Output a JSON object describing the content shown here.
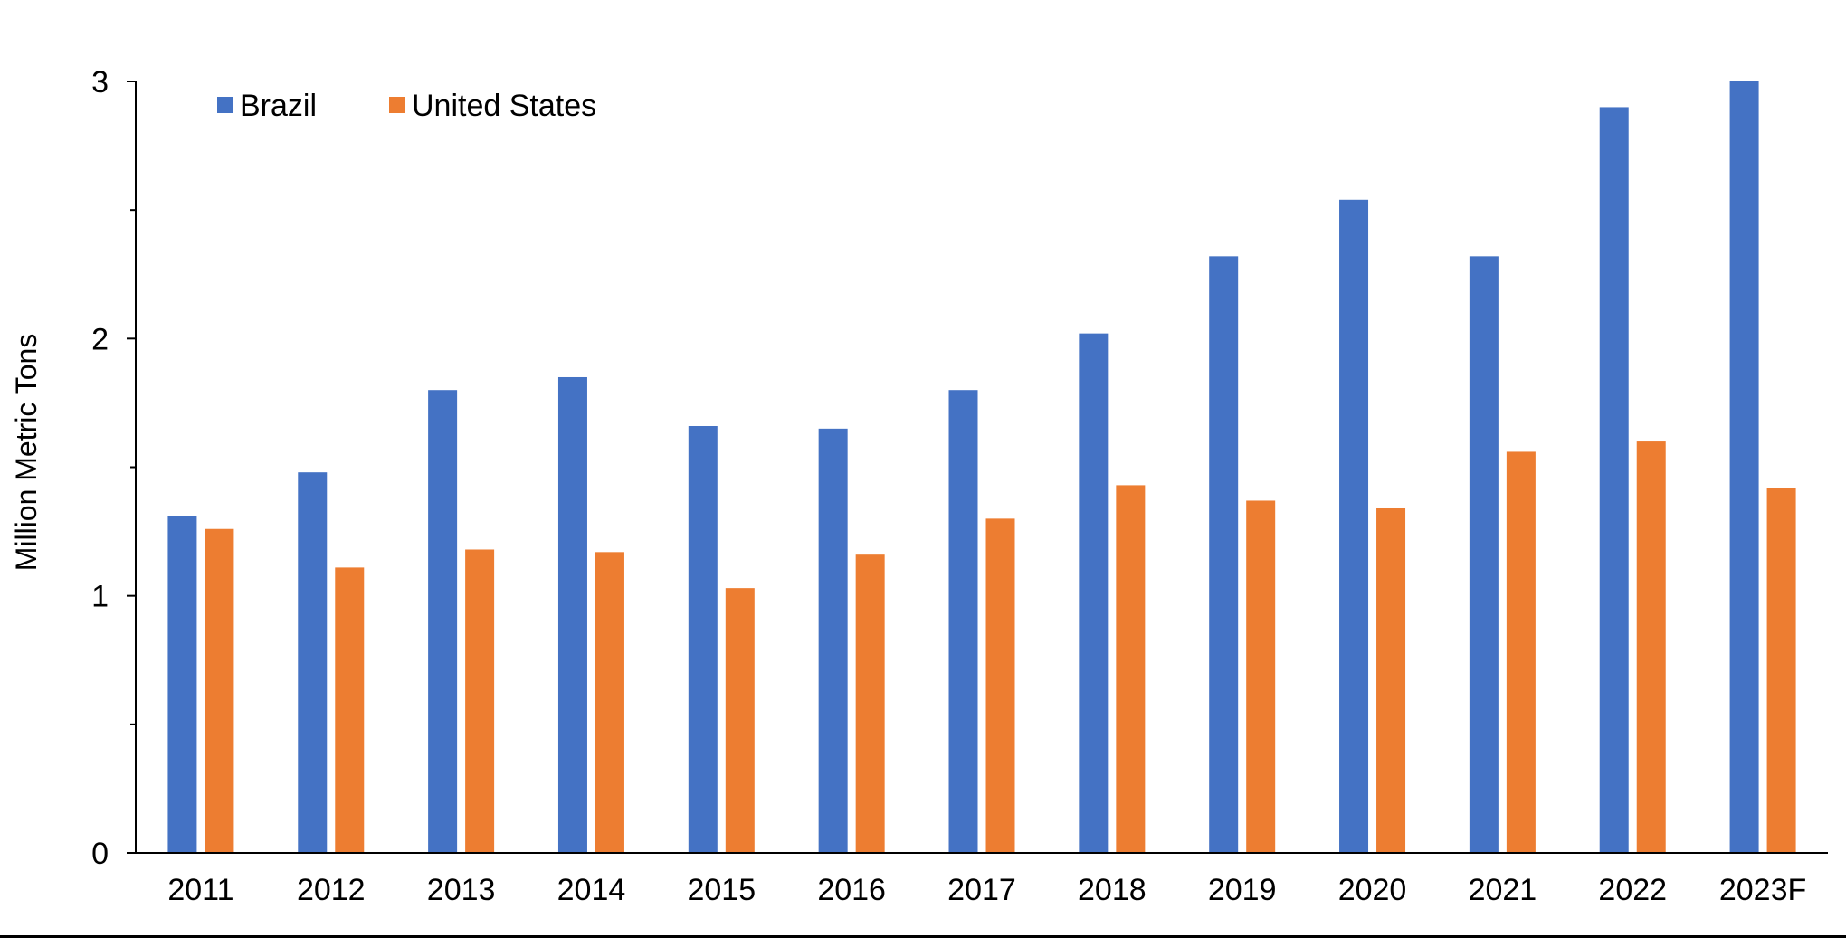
{
  "chart_data": {
    "type": "bar",
    "title": "",
    "xlabel": "",
    "ylabel": "Million Metric Tons",
    "categories": [
      "2011",
      "2012",
      "2013",
      "2014",
      "2015",
      "2016",
      "2017",
      "2018",
      "2019",
      "2020",
      "2021",
      "2022",
      "2023F"
    ],
    "series": [
      {
        "name": "Brazil",
        "color": "#4472C4",
        "values": [
          1.31,
          1.48,
          1.8,
          1.85,
          1.66,
          1.65,
          1.8,
          2.02,
          2.32,
          2.54,
          2.32,
          2.9,
          3.0
        ]
      },
      {
        "name": "United States",
        "color": "#ED7D31",
        "values": [
          1.26,
          1.11,
          1.18,
          1.17,
          1.03,
          1.16,
          1.3,
          1.43,
          1.37,
          1.34,
          1.56,
          1.6,
          1.42
        ]
      }
    ],
    "ylim": [
      0,
      3
    ],
    "yticks": [
      "0",
      "1",
      "2",
      "3"
    ],
    "ytick_values": [
      0,
      1,
      2,
      3
    ],
    "minor_ytick_values": [
      0.5,
      1.5,
      2.5
    ],
    "grid": false,
    "legend_position": "top-left"
  }
}
